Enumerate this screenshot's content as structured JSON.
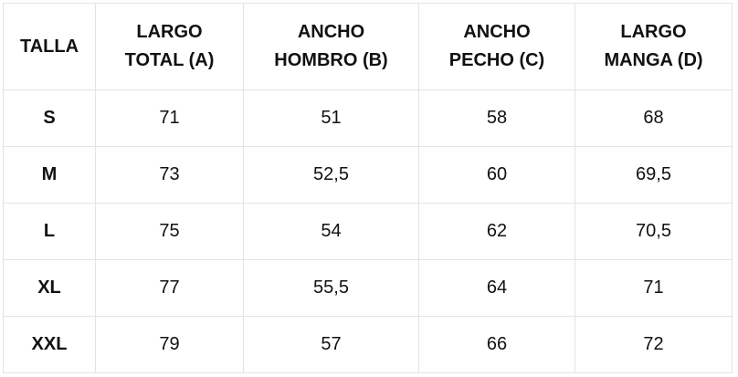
{
  "table": {
    "header": [
      [
        "TALLA"
      ],
      [
        "LARGO",
        "TOTAL (A)"
      ],
      [
        "ANCHO",
        "HOMBRO (B)"
      ],
      [
        "ANCHO",
        "PECHO (C)"
      ],
      [
        "LARGO",
        "MANGA (D)"
      ]
    ],
    "rows": [
      [
        "S",
        "71",
        "51",
        "58",
        "68"
      ],
      [
        "M",
        "73",
        "52,5",
        "60",
        "69,5"
      ],
      [
        "L",
        "75",
        "54",
        "62",
        "70,5"
      ],
      [
        "XL",
        "77",
        "55,5",
        "64",
        "71"
      ],
      [
        "XXL",
        "79",
        "57",
        "66",
        "72"
      ]
    ]
  }
}
